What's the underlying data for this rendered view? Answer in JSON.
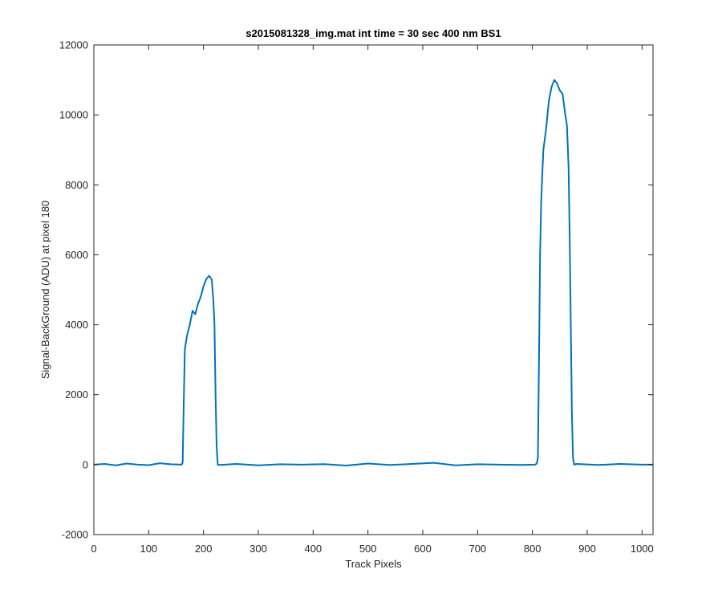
{
  "chart_data": {
    "type": "line",
    "title": "s2015081328_img.mat int time = 30 sec  400 nm BS1",
    "xlabel": "Track Pixels",
    "ylabel": "Signal-BackGround (ADU) at pixel 180",
    "xlim": [
      0,
      1020
    ],
    "ylim": [
      -2000,
      12000
    ],
    "xticks": [
      0,
      100,
      200,
      300,
      400,
      500,
      600,
      700,
      800,
      900,
      1000
    ],
    "yticks": [
      -2000,
      0,
      2000,
      4000,
      6000,
      8000,
      10000,
      12000
    ],
    "grid": false,
    "legend": "none",
    "colors": {
      "line": "#0072bd",
      "axes": "#262626",
      "background": "#ffffff"
    },
    "series": [
      {
        "x": [
          0,
          20,
          40,
          60,
          80,
          100,
          120,
          140,
          160,
          162,
          164,
          166,
          168,
          170,
          175,
          180,
          185,
          190,
          195,
          200,
          205,
          210,
          215,
          218,
          220,
          222,
          224,
          226,
          230,
          260,
          300,
          340,
          380,
          420,
          460,
          500,
          540,
          580,
          620,
          660,
          700,
          740,
          780,
          805,
          808,
          810,
          812,
          814,
          816,
          818,
          820,
          825,
          830,
          835,
          840,
          845,
          850,
          855,
          860,
          863,
          866,
          868,
          870,
          872,
          874,
          876,
          880,
          920,
          960,
          1000,
          1020
        ],
        "y": [
          0,
          20,
          -20,
          30,
          0,
          -15,
          40,
          10,
          0,
          60,
          1800,
          3300,
          3500,
          3700,
          4000,
          4400,
          4300,
          4600,
          4800,
          5100,
          5300,
          5400,
          5300,
          4700,
          4000,
          2000,
          500,
          0,
          -10,
          20,
          -20,
          10,
          0,
          15,
          -25,
          30,
          -10,
          20,
          50,
          -20,
          10,
          0,
          -10,
          0,
          30,
          200,
          3000,
          6000,
          7500,
          8300,
          9000,
          9600,
          10400,
          10800,
          11000,
          10900,
          10700,
          10600,
          10000,
          9700,
          8500,
          6500,
          4000,
          1500,
          200,
          0,
          20,
          -10,
          20,
          0,
          0
        ]
      }
    ]
  }
}
